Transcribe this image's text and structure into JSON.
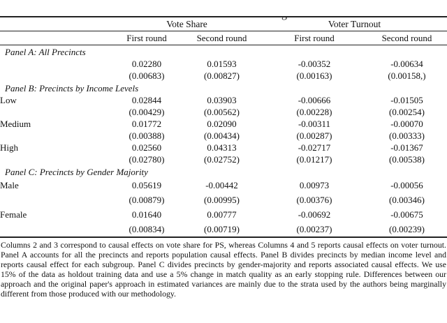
{
  "page": {
    "background_color": "#ffffff",
    "text_color": "#111111",
    "rule_color": "#222222"
  },
  "clipped_caption": {
    "fragment": "g"
  },
  "table": {
    "group_headers": [
      {
        "label": "Vote Share"
      },
      {
        "label": "Voter Turnout"
      }
    ],
    "sub_headers": [
      "First round",
      "Second round",
      "First round",
      "Second round"
    ],
    "panels": [
      {
        "title": "Panel A: All Precincts",
        "rows": [
          {
            "label": "",
            "estimates": [
              "0.02280",
              "0.01593",
              "-0.00352",
              "-0.00634"
            ],
            "std_errors": [
              "(0.00683)",
              "(0.00827)",
              "(0.00163)",
              "(0.00158,)"
            ]
          }
        ]
      },
      {
        "title": "Panel B: Precincts by Income Levels",
        "rows": [
          {
            "label": "Low",
            "estimates": [
              "0.02844",
              "0.03903",
              "-0.00666",
              "-0.01505"
            ],
            "std_errors": [
              "(0.00429)",
              "(0.00562)",
              "(0.00228)",
              "(0.00254)"
            ]
          },
          {
            "label": "Medium",
            "estimates": [
              "0.01772",
              "0.02090",
              "-0.00311",
              "-0.00070"
            ],
            "std_errors": [
              "(0.00388)",
              "(0.00434)",
              "(0.00287)",
              "(0.00333)"
            ]
          },
          {
            "label": "High",
            "estimates": [
              "0.02560",
              "0.04313",
              "-0.02717",
              "-0.01367"
            ],
            "std_errors": [
              "(0.02780)",
              "(0.02752)",
              "(0.01217)",
              "(0.00538)"
            ]
          }
        ]
      },
      {
        "title": "Panel C: Precincts by Gender Majority",
        "rows": [
          {
            "label": "Male",
            "estimates": [
              "0.05619",
              "-0.00442",
              "0.00973",
              "-0.00056"
            ],
            "std_errors": [
              "(0.00879)",
              "(0.00995)",
              "(0.00376)",
              "(0.00346)"
            ]
          },
          {
            "label": "Female",
            "estimates": [
              "0.01640",
              "0.00777",
              "-0.00692",
              "-0.00675"
            ],
            "std_errors": [
              "(0.00834)",
              "(0.00719)",
              "(0.00237)",
              "(0.00239)"
            ]
          }
        ]
      }
    ]
  },
  "footnote": {
    "text": "Columns 2 and 3 correspond to causal effects on vote share for PS, whereas Columns 4 and 5 reports causal effects on voter turnout. Panel A accounts for all the precincts and reports population causal effects. Panel B divides precincts by median income level and reports causal effect for each subgroup. Panel C divides precincts by gender-majority and reports associated causal effects. We use 15% of the data as holdout training data and use a 5% change in match quality as an early stopping rule. Differences between our approach and the original paper's approach in estimated variances are mainly due to the strata used by the authors being marginally different from those produced with our methodology."
  }
}
